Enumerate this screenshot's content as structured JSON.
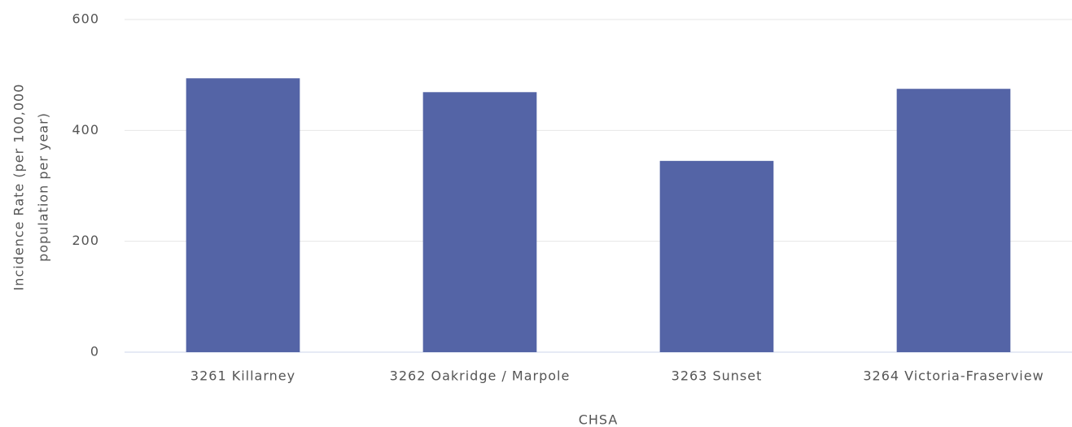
{
  "chart_data": {
    "type": "bar",
    "categories": [
      "3261 Killarney",
      "3262 Oakridge / Marpole",
      "3263 Sunset",
      "3264 Victoria-Fraserview"
    ],
    "values": [
      494,
      469,
      345,
      475
    ],
    "color": "#5464a6",
    "x_label": "CHSA",
    "y_label": [
      "Incidence Rate (per 100,000",
      "population per year)"
    ],
    "ylim": [
      0,
      600
    ],
    "yticks": [
      0,
      200,
      400,
      600
    ],
    "grid": true
  }
}
